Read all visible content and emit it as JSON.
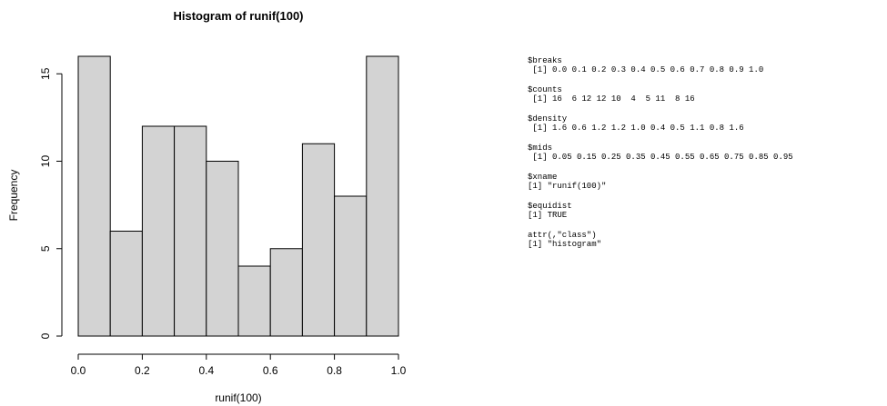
{
  "chart_data": {
    "type": "bar",
    "title": "Histogram of runif(100)",
    "xlabel": "runif(100)",
    "ylabel": "Frequency",
    "breaks": [
      0.0,
      0.1,
      0.2,
      0.3,
      0.4,
      0.5,
      0.6,
      0.7,
      0.8,
      0.9,
      1.0
    ],
    "values": [
      16,
      6,
      12,
      12,
      10,
      4,
      5,
      11,
      8,
      16
    ],
    "xlim": [
      0,
      1
    ],
    "ylim": [
      0,
      16
    ],
    "xticks": [
      0.0,
      0.2,
      0.4,
      0.6,
      0.8,
      1.0
    ],
    "xtick_labels": [
      "0.0",
      "0.2",
      "0.4",
      "0.6",
      "0.8",
      "1.0"
    ],
    "yticks": [
      0,
      5,
      10,
      15
    ],
    "ytick_labels": [
      "0",
      "5",
      "10",
      "15"
    ],
    "bar_fill": "#d3d3d3",
    "bar_stroke": "#000000",
    "grid": false
  },
  "console": {
    "blocks": [
      [
        "$breaks",
        " [1] 0.0 0.1 0.2 0.3 0.4 0.5 0.6 0.7 0.8 0.9 1.0"
      ],
      [
        "$counts",
        " [1] 16  6 12 12 10  4  5 11  8 16"
      ],
      [
        "$density",
        " [1] 1.6 0.6 1.2 1.2 1.0 0.4 0.5 1.1 0.8 1.6"
      ],
      [
        "$mids",
        " [1] 0.05 0.15 0.25 0.35 0.45 0.55 0.65 0.75 0.85 0.95"
      ],
      [
        "$xname",
        "[1] \"runif(100)\""
      ],
      [
        "$equidist",
        "[1] TRUE"
      ],
      [
        "attr(,\"class\")",
        "[1] \"histogram\""
      ]
    ]
  }
}
